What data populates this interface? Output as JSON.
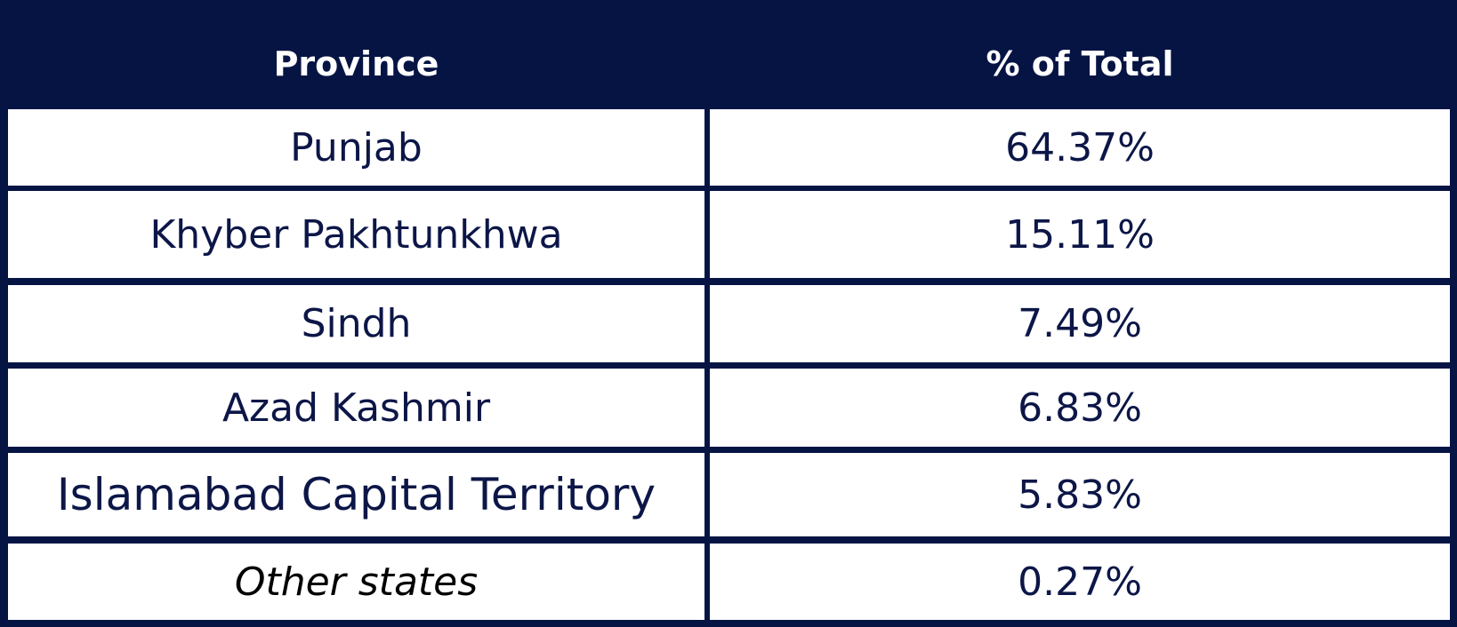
{
  "table": {
    "header": [
      "Province",
      "% of Total"
    ],
    "rows": [
      [
        "Punjab",
        "64.37%"
      ],
      [
        "Khyber Pakhtunkhwa",
        "15.11%"
      ],
      [
        "Sindh",
        "7.49%"
      ],
      [
        "Azad Kashmir",
        "6.83%"
      ],
      [
        "Islamabad Capital Territory",
        "5.83%"
      ],
      [
        "Other states",
        "0.27%"
      ]
    ]
  }
}
